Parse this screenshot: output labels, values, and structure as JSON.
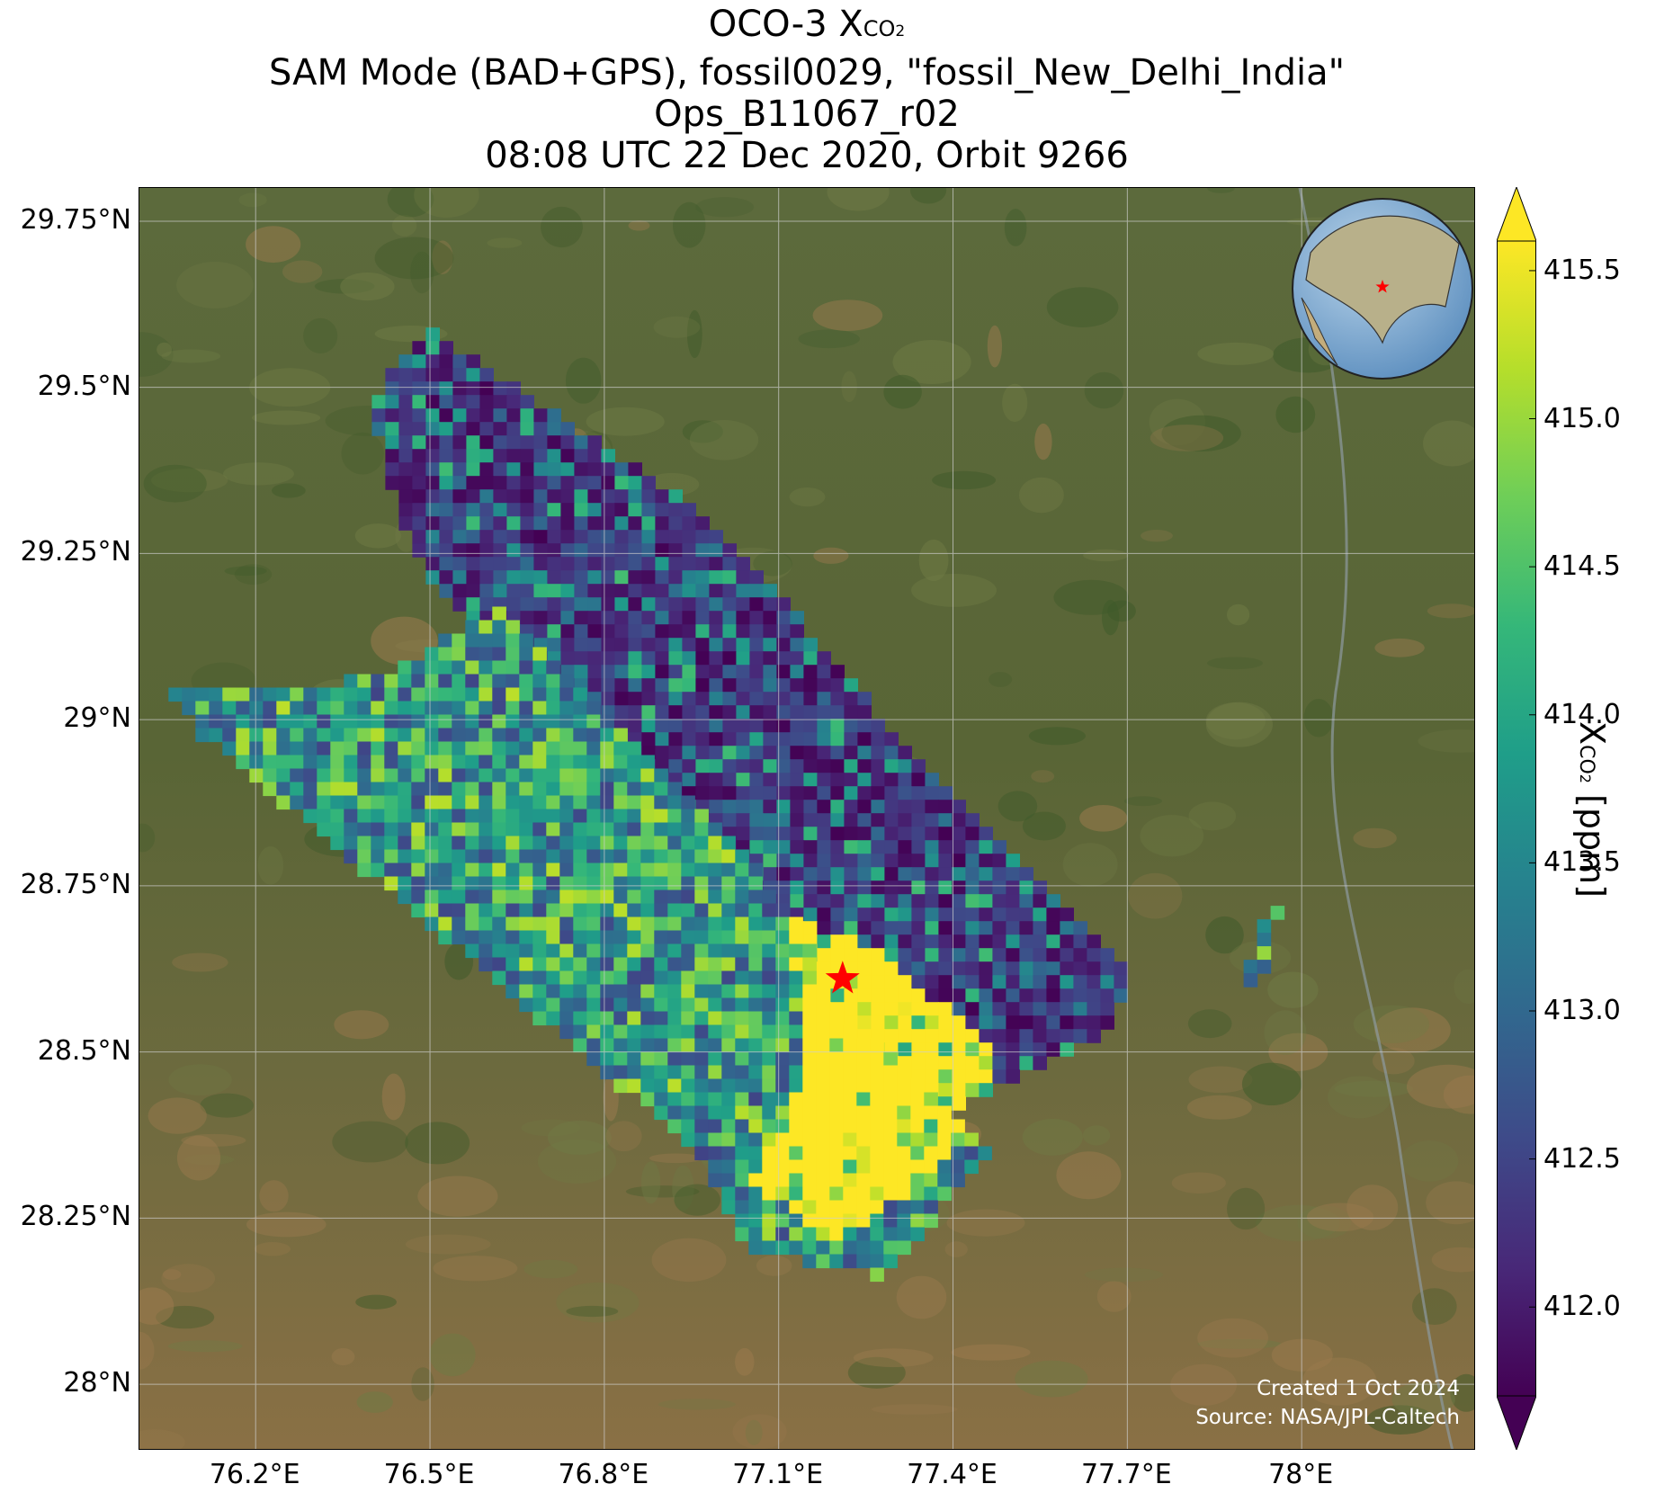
{
  "title": {
    "line1_prefix": "OCO-3 X",
    "line1_sub": "CO",
    "line1_subsub": "2",
    "line2": "SAM Mode (BAD+GPS), fossil0029, \"fossil_New_Delhi_India\"",
    "line3": "Ops_B11067_r02",
    "line4": "08:08 UTC 22 Dec 2020, Orbit 9266"
  },
  "map": {
    "lon_range": [
      76.0,
      78.3
    ],
    "lat_range": [
      27.9,
      29.8
    ],
    "lon_ticks": [
      76.2,
      76.5,
      76.8,
      77.1,
      77.4,
      77.7,
      78.0
    ],
    "lon_tick_labels": [
      "76.2°E",
      "76.5°E",
      "76.8°E",
      "77.1°E",
      "77.4°E",
      "77.7°E",
      "78°E"
    ],
    "lat_ticks": [
      29.75,
      29.5,
      29.25,
      29.0,
      28.75,
      28.5,
      28.25,
      28.0
    ],
    "lat_tick_labels": [
      "29.75°N",
      "29.5°N",
      "29.25°N",
      "29°N",
      "28.75°N",
      "28.5°N",
      "28.25°N",
      "28°N"
    ],
    "gridlines": true,
    "basemap": "satellite imagery",
    "target": {
      "name": "New Delhi",
      "lon": 77.21,
      "lat": 28.61,
      "marker": "red-star-icon",
      "color": "#ff0000"
    },
    "inset_globe": {
      "placement": "top-right",
      "marker": "red-star-icon"
    },
    "credit_line1": "Created 1 Oct 2024",
    "credit_line2": "Source: NASA/JPL-Caltech"
  },
  "swaths": [
    {
      "name": "swath-upper",
      "polygon": [
        [
          76.42,
          29.52
        ],
        [
          76.5,
          29.59
        ],
        [
          77.0,
          29.29
        ],
        [
          77.26,
          29.02
        ],
        [
          77.33,
          28.95
        ],
        [
          77.7,
          28.62
        ],
        [
          77.68,
          28.54
        ],
        [
          77.36,
          28.39
        ],
        [
          77.1,
          28.62
        ],
        [
          76.96,
          28.8
        ],
        [
          76.5,
          29.2
        ],
        [
          76.46,
          29.28
        ],
        [
          76.4,
          29.46
        ]
      ]
    },
    {
      "name": "swath-lower",
      "polygon": [
        [
          76.05,
          29.05
        ],
        [
          76.4,
          29.06
        ],
        [
          76.63,
          29.17
        ],
        [
          77.12,
          28.72
        ],
        [
          77.2,
          28.56
        ],
        [
          77.32,
          28.48
        ],
        [
          77.46,
          28.35
        ],
        [
          77.28,
          28.16
        ],
        [
          77.05,
          28.2
        ],
        [
          76.95,
          28.36
        ],
        [
          76.1,
          28.98
        ]
      ]
    },
    {
      "name": "swath-east-fragment",
      "polygon": [
        [
          77.94,
          28.72
        ],
        [
          77.96,
          28.71
        ],
        [
          77.92,
          28.58
        ],
        [
          77.9,
          28.6
        ]
      ]
    }
  ],
  "high_region": {
    "polygon": [
      [
        77.12,
        28.7
      ],
      [
        77.26,
        28.66
      ],
      [
        77.48,
        28.5
      ],
      [
        77.38,
        28.32
      ],
      [
        77.2,
        28.22
      ],
      [
        77.05,
        28.3
      ],
      [
        77.15,
        28.48
      ]
    ]
  },
  "colorbar": {
    "min": 411.7,
    "max": 415.6,
    "extend": "both",
    "ticks": [
      412.0,
      412.5,
      413.0,
      413.5,
      414.0,
      414.5,
      415.0,
      415.5
    ],
    "tick_labels": [
      "412.0",
      "412.5",
      "413.0",
      "413.5",
      "414.0",
      "414.5",
      "415.0",
      "415.5"
    ],
    "colormap": "viridis",
    "stops": [
      "#440154",
      "#482878",
      "#3e4a89",
      "#31688e",
      "#26828e",
      "#1f9e89",
      "#35b779",
      "#6ece58",
      "#b5de2b",
      "#fde725"
    ],
    "label_prefix": "X",
    "label_sub": "CO",
    "label_subsub": "2",
    "label_suffix": " [ppm]"
  }
}
